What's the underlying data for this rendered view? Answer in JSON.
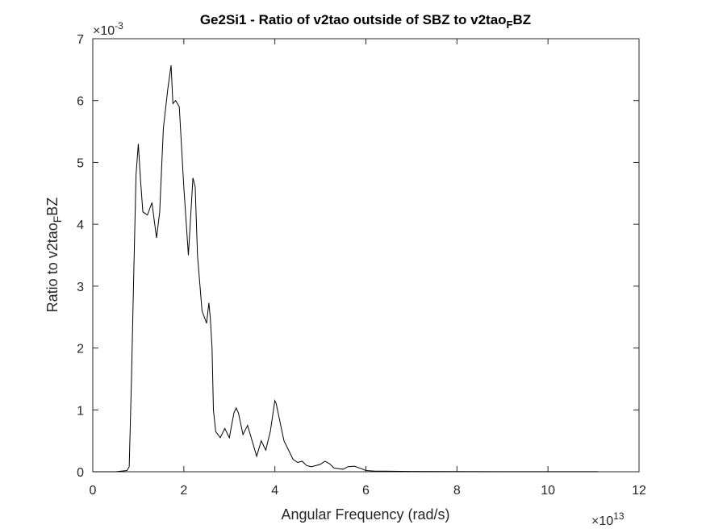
{
  "chart_data": {
    "type": "line",
    "title": {
      "prefix": "Ge2Si1 - Ratio of v2tao outside of SBZ to v2tao",
      "subscript": "F",
      "suffix": "BZ"
    },
    "xlabel": "Angular Frequency (rad/s)",
    "ylabel": {
      "prefix": "Ratio to v2tao",
      "subscript": "F",
      "suffix": "BZ"
    },
    "x_multiplier": {
      "base": "×10",
      "exponent": "13"
    },
    "y_multiplier": {
      "base": "×10",
      "exponent": "-3"
    },
    "xlim": [
      0,
      12
    ],
    "ylim": [
      0,
      7
    ],
    "xticks": [
      0,
      2,
      4,
      6,
      8,
      10,
      12
    ],
    "yticks": [
      0,
      1,
      2,
      3,
      4,
      5,
      6,
      7
    ],
    "xtick_labels": [
      "0",
      "2",
      "4",
      "6",
      "8",
      "10",
      "12"
    ],
    "ytick_labels": [
      "0",
      "1",
      "2",
      "3",
      "4",
      "5",
      "6",
      "7"
    ],
    "grid": false,
    "line_color": "#000000",
    "series": [
      {
        "x": [
          0,
          0.5,
          0.75,
          0.8,
          0.85,
          0.9,
          0.95,
          1.0,
          1.05,
          1.1,
          1.2,
          1.3,
          1.4,
          1.47,
          1.55,
          1.65,
          1.72,
          1.76,
          1.82,
          1.9,
          2.0,
          2.1,
          2.2,
          2.25,
          2.3,
          2.4,
          2.5,
          2.55,
          2.58,
          2.62,
          2.65,
          2.7,
          2.8,
          2.9,
          3.0,
          3.1,
          3.15,
          3.2,
          3.3,
          3.4,
          3.5,
          3.6,
          3.7,
          3.8,
          3.9,
          4.0,
          4.03,
          4.1,
          4.2,
          4.3,
          4.4,
          4.5,
          4.6,
          4.7,
          4.8,
          4.9,
          5.0,
          5.1,
          5.2,
          5.3,
          5.4,
          5.5,
          5.6,
          5.75,
          5.9,
          6.0,
          6.2,
          6.4,
          7.0,
          8.0,
          9.0,
          10.0,
          11.1
        ],
        "y": [
          0,
          0,
          0.02,
          0.08,
          1.5,
          3.2,
          4.8,
          5.3,
          4.7,
          4.2,
          4.15,
          4.35,
          3.78,
          4.2,
          5.55,
          6.2,
          6.57,
          5.95,
          6.0,
          5.9,
          4.6,
          3.5,
          4.75,
          4.6,
          3.5,
          2.6,
          2.4,
          2.73,
          2.5,
          2.0,
          1.0,
          0.65,
          0.55,
          0.7,
          0.55,
          0.95,
          1.03,
          0.95,
          0.6,
          0.75,
          0.5,
          0.25,
          0.5,
          0.35,
          0.65,
          1.15,
          1.1,
          0.85,
          0.5,
          0.35,
          0.2,
          0.15,
          0.17,
          0.1,
          0.08,
          0.1,
          0.12,
          0.17,
          0.13,
          0.06,
          0.05,
          0.04,
          0.08,
          0.09,
          0.05,
          0.02,
          0.01,
          0.01,
          0.005,
          0.003,
          0.002,
          0.002,
          0.002
        ]
      }
    ]
  }
}
